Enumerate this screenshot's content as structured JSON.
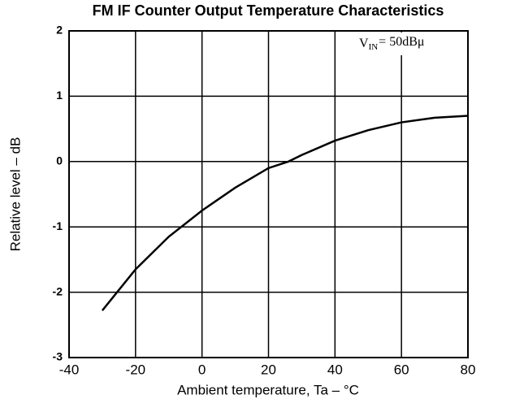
{
  "chart_data": {
    "type": "line",
    "title": "FM IF Counter Output Temperature Characteristics",
    "xlabel": "Ambient temperature, Ta – °C",
    "ylabel": "Relative level – dB",
    "annotation": {
      "main": "V",
      "subscript": "IN",
      "rest": "= 50dBμ"
    },
    "x": [
      -30,
      -20,
      -10,
      0,
      10,
      20,
      26,
      30,
      40,
      50,
      60,
      70,
      80
    ],
    "series": [
      {
        "color": "#000000",
        "values": [
          -2.28,
          -1.65,
          -1.15,
          -0.75,
          -0.4,
          -0.1,
          0,
          0.1,
          0.32,
          0.48,
          0.6,
          0.67,
          0.7
        ]
      }
    ],
    "xlim": [
      -40,
      80
    ],
    "xticks": [
      -40,
      -20,
      0,
      20,
      40,
      60,
      80
    ],
    "ylim": [
      -3,
      2
    ],
    "yticks": [
      -3,
      -2,
      -1,
      0,
      1,
      2
    ],
    "grid": true
  }
}
